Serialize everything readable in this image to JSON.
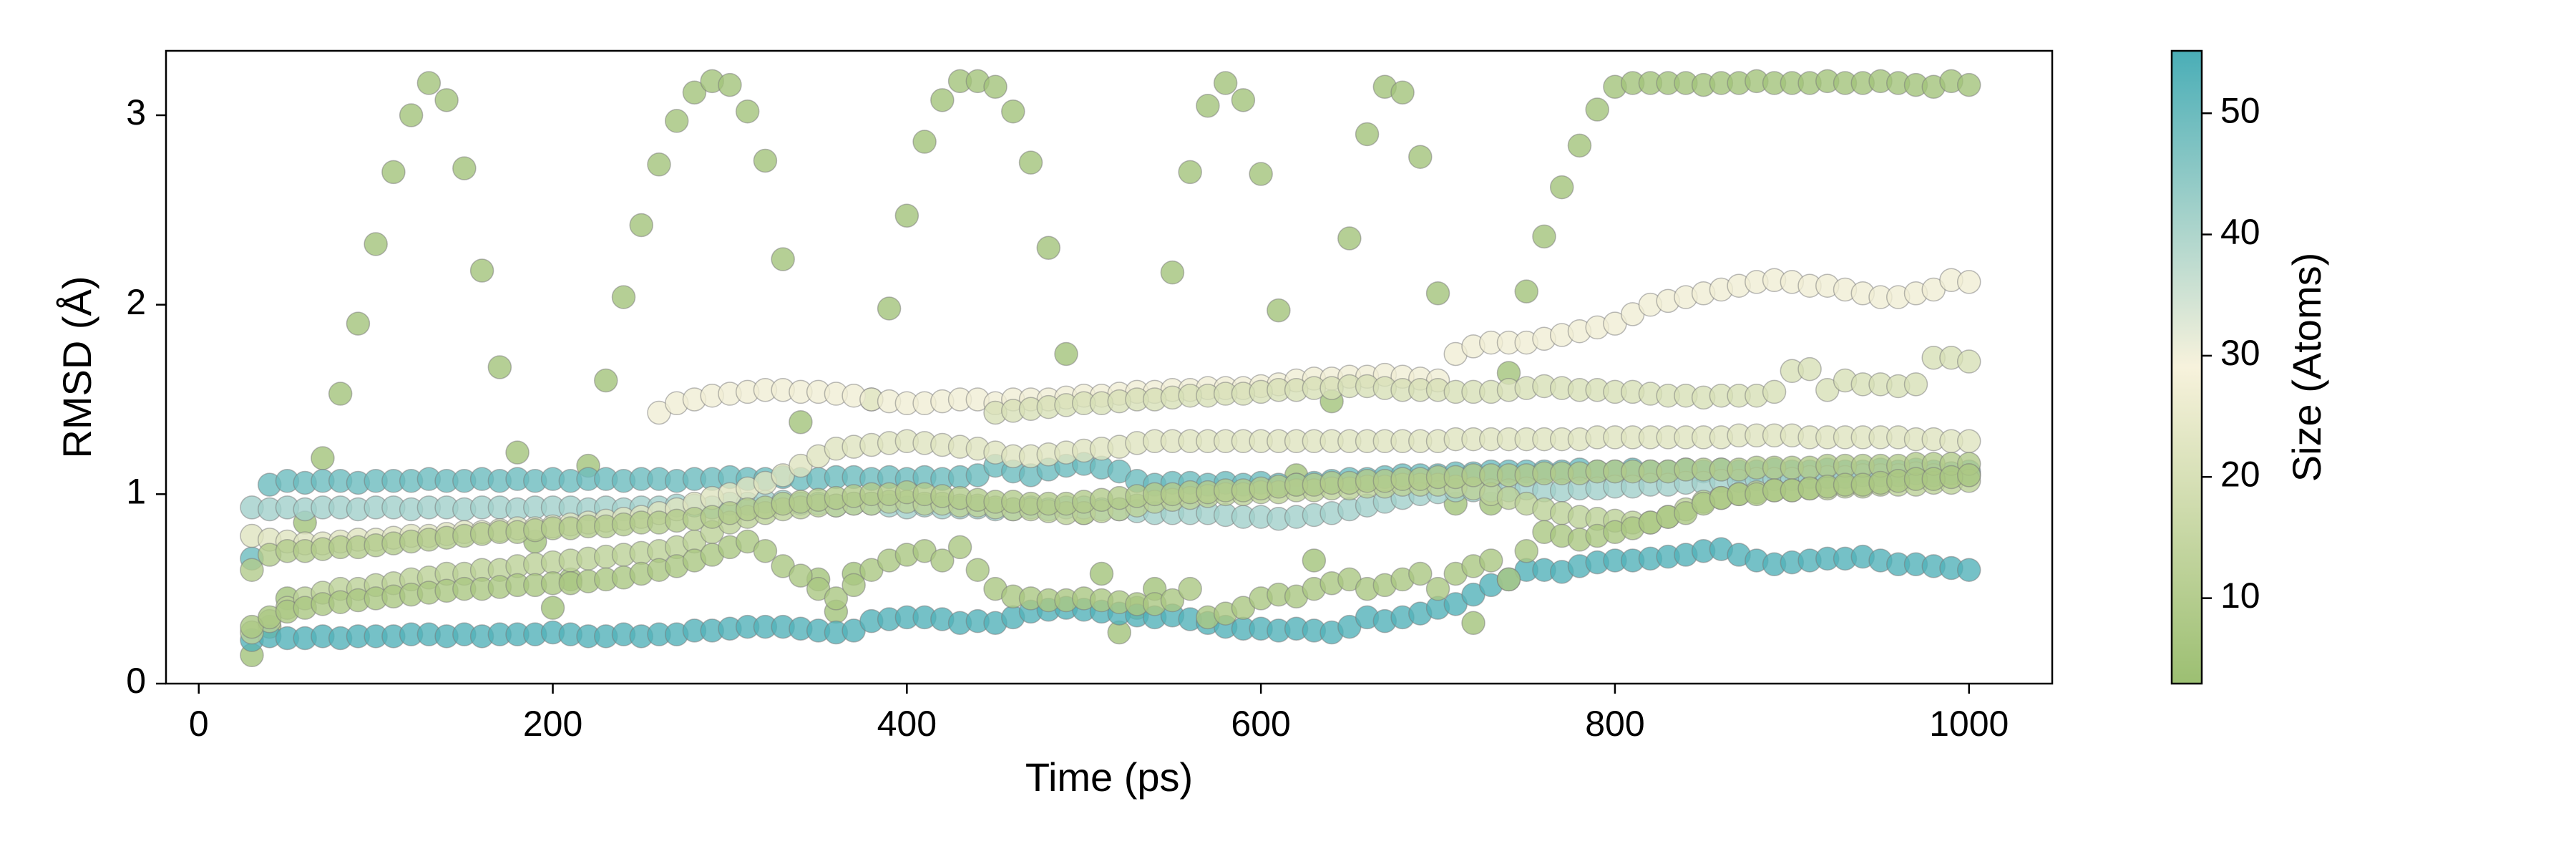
{
  "chart_data": {
    "type": "scatter",
    "xlabel": "Time (ps)",
    "ylabel": "RMSD (Å)",
    "xlim": [
      -18.5,
      1047
    ],
    "ylim": [
      0,
      3.34
    ],
    "xticks": [
      0,
      200,
      400,
      600,
      800,
      1000
    ],
    "yticks": [
      0,
      1,
      2,
      3
    ],
    "colorbar": {
      "label": "Size (Atoms)",
      "clim": [
        2.95,
        55.15
      ],
      "ticks": [
        10,
        20,
        30,
        40,
        50
      ],
      "colormap": [
        "#9cbf72",
        "#f7f2dc",
        "#4aaeb7"
      ]
    },
    "x": [
      30,
      40,
      50,
      60,
      70,
      80,
      90,
      100,
      110,
      120,
      130,
      140,
      150,
      160,
      170,
      180,
      190,
      200,
      210,
      220,
      230,
      240,
      250,
      260,
      270,
      280,
      290,
      300,
      310,
      320,
      330,
      340,
      350,
      360,
      370,
      380,
      390,
      400,
      410,
      420,
      430,
      440,
      450,
      460,
      470,
      480,
      490,
      500,
      510,
      520,
      530,
      540,
      550,
      560,
      570,
      580,
      590,
      600,
      610,
      620,
      630,
      640,
      650,
      660,
      670,
      680,
      690,
      700,
      710,
      720,
      730,
      740,
      750,
      760,
      770,
      780,
      790,
      800,
      810,
      820,
      830,
      840,
      850,
      860,
      870,
      880,
      890,
      900,
      910,
      920,
      930,
      940,
      950,
      960,
      970,
      980,
      990,
      1000
    ],
    "series": [
      {
        "size": 5,
        "values": [
          0.15,
          0.3,
          0.45,
          0.85,
          1.19,
          1.53,
          1.9,
          2.32,
          2.7,
          3.0,
          3.17,
          3.08,
          2.72,
          2.18,
          1.67,
          1.22,
          0.75,
          0.4,
          0.55,
          1.15,
          1.6,
          2.04,
          2.42,
          2.74,
          2.97,
          3.12,
          3.18,
          3.16,
          3.02,
          2.76,
          2.24,
          1.38,
          0.55,
          0.38,
          0.58,
          1.5,
          1.98,
          2.47,
          2.86,
          3.08,
          3.18,
          3.18,
          3.15,
          3.02,
          2.75,
          2.3,
          1.74,
          0.9,
          0.58,
          0.27,
          0.4,
          0.5,
          2.17,
          2.7,
          3.05,
          3.17,
          3.08,
          2.69,
          1.97,
          1.1,
          0.65,
          1.49,
          2.35,
          2.9,
          3.15,
          3.12,
          2.78,
          2.06,
          0.95,
          0.32,
          0.95,
          1.64,
          2.07,
          2.36,
          2.62,
          2.84,
          3.03,
          3.15,
          3.17,
          3.17,
          3.17,
          3.17,
          3.16,
          3.17,
          3.17,
          3.18,
          3.17,
          3.17,
          3.17,
          3.18,
          3.17,
          3.17,
          3.18,
          3.17,
          3.16,
          3.15,
          3.18,
          3.16
        ]
      },
      {
        "size": 54,
        "values": [
          0.23,
          0.25,
          0.24,
          0.24,
          0.25,
          0.24,
          0.25,
          0.25,
          0.25,
          0.26,
          0.26,
          0.25,
          0.26,
          0.25,
          0.26,
          0.26,
          0.26,
          0.27,
          0.26,
          0.25,
          0.25,
          0.26,
          0.25,
          0.26,
          0.26,
          0.28,
          0.28,
          0.29,
          0.3,
          0.3,
          0.3,
          0.29,
          0.28,
          0.27,
          0.28,
          0.33,
          0.34,
          0.35,
          0.35,
          0.34,
          0.32,
          0.33,
          0.32,
          0.35,
          0.38,
          0.39,
          0.4,
          0.39,
          0.38,
          0.37,
          0.36,
          0.35,
          0.36,
          0.34,
          0.32,
          0.3,
          0.29,
          0.29,
          0.28,
          0.29,
          0.28,
          0.27,
          0.3,
          0.35,
          0.33,
          0.35,
          0.37,
          0.4,
          0.42,
          0.47,
          0.52,
          0.55,
          0.6,
          0.6,
          0.59,
          0.62,
          0.64,
          0.65,
          0.65,
          0.66,
          0.67,
          0.68,
          0.7,
          0.71,
          0.68,
          0.65,
          0.63,
          0.64,
          0.65,
          0.66,
          0.66,
          0.67,
          0.65,
          0.63,
          0.63,
          0.62,
          0.61,
          0.6
        ]
      },
      {
        "size": 50,
        "values": [
          0.66,
          1.05,
          1.07,
          1.06,
          1.07,
          1.07,
          1.06,
          1.07,
          1.07,
          1.07,
          1.08,
          1.07,
          1.07,
          1.08,
          1.07,
          1.08,
          1.07,
          1.08,
          1.07,
          1.08,
          1.08,
          1.07,
          1.08,
          1.08,
          1.07,
          1.08,
          1.08,
          1.09,
          1.08,
          1.08,
          1.09,
          1.08,
          1.08,
          1.09,
          1.09,
          1.08,
          1.09,
          1.08,
          1.09,
          1.08,
          1.09,
          1.1,
          1.15,
          1.12,
          1.1,
          1.13,
          1.15,
          1.16,
          1.14,
          1.12,
          1.07,
          1.05,
          1.06,
          1.06,
          1.05,
          1.06,
          1.05,
          1.06,
          1.05,
          1.05,
          1.06,
          1.07,
          1.08,
          1.08,
          1.09,
          1.1,
          1.1,
          1.1,
          1.11,
          1.11,
          1.12,
          1.12,
          1.12,
          1.12,
          1.12,
          1.13,
          1.12,
          1.12,
          1.13,
          1.12,
          1.12,
          1.13,
          1.12,
          1.13,
          1.12,
          1.12,
          1.13,
          1.12,
          1.12,
          1.13,
          1.12,
          1.12,
          1.13,
          1.12,
          1.13,
          1.12,
          1.11,
          1.12
        ]
      },
      {
        "size": 42,
        "values": [
          0.93,
          0.92,
          0.93,
          0.92,
          0.93,
          0.93,
          0.92,
          0.93,
          0.93,
          0.92,
          0.93,
          0.93,
          0.92,
          0.93,
          0.93,
          0.92,
          0.93,
          0.93,
          0.93,
          0.92,
          0.93,
          0.92,
          0.93,
          0.93,
          0.94,
          0.94,
          0.93,
          0.95,
          0.95,
          0.96,
          0.96,
          0.95,
          0.95,
          0.94,
          0.95,
          0.95,
          0.94,
          0.93,
          0.94,
          0.93,
          0.93,
          0.93,
          0.92,
          0.92,
          0.93,
          0.92,
          0.93,
          0.93,
          0.92,
          0.92,
          0.91,
          0.9,
          0.9,
          0.9,
          0.9,
          0.89,
          0.88,
          0.88,
          0.87,
          0.88,
          0.89,
          0.9,
          0.92,
          0.94,
          0.96,
          0.98,
          1.0,
          1.01,
          1.02,
          1.02,
          1.02,
          1.02,
          1.03,
          1.02,
          1.02,
          1.03,
          1.03,
          1.04,
          1.04,
          1.05,
          1.05,
          1.06,
          1.06,
          1.07,
          1.07,
          1.08,
          1.08,
          1.08,
          1.09,
          1.09,
          1.09,
          1.1,
          1.1,
          1.1,
          1.11,
          1.1,
          1.11,
          1.1
        ]
      },
      {
        "size": 27,
        "values": [
          null,
          null,
          null,
          null,
          null,
          null,
          null,
          null,
          null,
          null,
          null,
          null,
          null,
          null,
          null,
          null,
          null,
          null,
          null,
          null,
          null,
          null,
          null,
          1.43,
          1.48,
          1.5,
          1.52,
          1.53,
          1.54,
          1.55,
          1.55,
          1.54,
          1.54,
          1.53,
          1.52,
          1.5,
          1.49,
          1.48,
          1.48,
          1.49,
          1.5,
          1.5,
          1.48,
          1.5,
          1.5,
          1.5,
          1.51,
          1.52,
          1.52,
          1.53,
          1.54,
          1.54,
          1.55,
          1.55,
          1.56,
          1.56,
          1.56,
          1.57,
          1.58,
          1.6,
          1.61,
          1.61,
          1.62,
          1.62,
          1.63,
          1.62,
          1.61,
          1.6,
          1.74,
          1.78,
          1.8,
          1.8,
          1.8,
          1.82,
          1.84,
          1.86,
          1.88,
          1.9,
          1.95,
          2.0,
          2.02,
          2.04,
          2.06,
          2.08,
          2.1,
          2.12,
          2.13,
          2.12,
          2.1,
          2.1,
          2.08,
          2.06,
          2.04,
          2.04,
          2.06,
          2.08,
          2.13,
          2.12
        ]
      },
      {
        "size": 22,
        "values": [
          0.78,
          0.76,
          0.75,
          0.74,
          0.74,
          0.75,
          0.76,
          0.76,
          0.77,
          0.78,
          0.78,
          0.79,
          0.8,
          0.8,
          0.81,
          0.82,
          0.82,
          0.83,
          0.84,
          0.85,
          0.86,
          0.87,
          0.88,
          0.9,
          0.92,
          0.95,
          0.98,
          1.0,
          1.03,
          1.06,
          1.1,
          1.15,
          1.2,
          1.24,
          1.25,
          1.26,
          1.27,
          1.28,
          1.27,
          1.26,
          1.25,
          1.24,
          1.22,
          1.2,
          1.2,
          1.21,
          1.22,
          1.23,
          1.24,
          1.25,
          1.27,
          1.28,
          1.28,
          1.28,
          1.28,
          1.28,
          1.28,
          1.28,
          1.28,
          1.28,
          1.28,
          1.28,
          1.28,
          1.28,
          1.28,
          1.28,
          1.28,
          1.28,
          1.29,
          1.29,
          1.29,
          1.29,
          1.29,
          1.29,
          1.29,
          1.29,
          1.3,
          1.3,
          1.3,
          1.3,
          1.3,
          1.3,
          1.3,
          1.3,
          1.31,
          1.31,
          1.31,
          1.31,
          1.3,
          1.3,
          1.3,
          1.3,
          1.3,
          1.3,
          1.29,
          1.29,
          1.28,
          1.28
        ]
      },
      {
        "size": 20,
        "values": [
          null,
          null,
          null,
          null,
          null,
          null,
          null,
          null,
          null,
          null,
          null,
          null,
          null,
          null,
          null,
          null,
          null,
          null,
          null,
          null,
          null,
          null,
          null,
          null,
          null,
          null,
          null,
          null,
          null,
          null,
          null,
          null,
          null,
          null,
          null,
          null,
          null,
          null,
          null,
          null,
          null,
          null,
          1.43,
          1.44,
          1.45,
          1.46,
          1.47,
          1.48,
          1.48,
          1.49,
          1.5,
          1.5,
          1.51,
          1.52,
          1.52,
          1.53,
          1.53,
          1.54,
          1.55,
          1.55,
          1.56,
          1.56,
          1.57,
          1.57,
          1.56,
          1.55,
          1.55,
          1.55,
          1.54,
          1.54,
          1.54,
          1.55,
          1.56,
          1.57,
          1.56,
          1.55,
          1.55,
          1.54,
          1.54,
          1.53,
          1.52,
          1.52,
          1.51,
          1.52,
          1.52,
          1.52,
          1.54,
          1.65,
          1.66,
          1.55,
          1.6,
          1.58,
          1.58,
          1.57,
          1.58,
          1.72,
          1.72,
          1.7
        ]
      },
      {
        "size": 12,
        "values": [
          0.27,
          0.33,
          0.4,
          0.45,
          0.48,
          0.5,
          0.5,
          0.52,
          0.53,
          0.55,
          0.56,
          0.58,
          0.58,
          0.6,
          0.6,
          0.62,
          0.63,
          0.64,
          0.65,
          0.66,
          0.67,
          0.68,
          0.69,
          0.7,
          0.72,
          0.75,
          0.8,
          0.85,
          0.88,
          0.9,
          0.92,
          0.93,
          0.94,
          0.94,
          0.95,
          0.95,
          0.96,
          0.96,
          0.95,
          0.95,
          0.94,
          0.94,
          0.93,
          0.92,
          0.92,
          0.91,
          0.9,
          0.9,
          0.91,
          0.92,
          0.94,
          0.96,
          0.97,
          0.98,
          0.99,
          1.0,
          1.0,
          1.01,
          1.01,
          1.02,
          1.02,
          1.03,
          1.03,
          1.04,
          1.04,
          1.05,
          1.05,
          1.05,
          1.04,
          1.03,
          1.0,
          0.98,
          0.95,
          0.92,
          0.9,
          0.88,
          0.87,
          0.86,
          0.85,
          0.85,
          0.88,
          0.92,
          0.96,
          0.98,
          1.0,
          1.01,
          1.02,
          1.02,
          1.03,
          1.03,
          1.04,
          1.04,
          1.05,
          1.05,
          1.05,
          1.06,
          1.06,
          1.07
        ]
      },
      {
        "size": 9,
        "values": [
          0.6,
          0.68,
          0.7,
          0.7,
          0.71,
          0.72,
          0.72,
          0.73,
          0.74,
          0.75,
          0.76,
          0.77,
          0.78,
          0.79,
          0.8,
          0.8,
          0.81,
          0.82,
          0.82,
          0.83,
          0.83,
          0.84,
          0.85,
          0.85,
          0.86,
          0.87,
          0.88,
          0.9,
          0.92,
          0.93,
          0.95,
          0.96,
          0.97,
          0.98,
          0.99,
          1.0,
          1.0,
          1.01,
          1.0,
          0.99,
          0.98,
          0.97,
          0.96,
          0.96,
          0.95,
          0.95,
          0.95,
          0.96,
          0.97,
          0.98,
          0.99,
          1.0,
          1.0,
          1.01,
          1.01,
          1.02,
          1.02,
          1.03,
          1.04,
          1.05,
          1.05,
          1.06,
          1.06,
          1.07,
          1.07,
          1.08,
          1.08,
          1.09,
          1.09,
          1.1,
          1.1,
          1.1,
          1.1,
          1.11,
          1.11,
          1.11,
          1.12,
          1.12,
          1.12,
          1.12,
          1.12,
          1.13,
          1.13,
          1.13,
          1.13,
          1.14,
          1.14,
          1.14,
          1.14,
          1.15,
          1.15,
          1.15,
          1.15,
          1.15,
          1.16,
          1.16,
          1.16,
          1.16
        ]
      },
      {
        "size": 7,
        "values": [
          0.3,
          0.35,
          0.38,
          0.4,
          0.42,
          0.43,
          0.44,
          0.45,
          0.46,
          0.47,
          0.48,
          0.49,
          0.5,
          0.5,
          0.51,
          0.52,
          0.52,
          0.53,
          0.53,
          0.54,
          0.55,
          0.56,
          0.58,
          0.6,
          0.62,
          0.65,
          0.68,
          0.72,
          0.75,
          0.7,
          0.62,
          0.57,
          0.5,
          0.45,
          0.52,
          0.6,
          0.65,
          0.68,
          0.7,
          0.65,
          0.72,
          0.6,
          0.5,
          0.46,
          0.45,
          0.44,
          0.44,
          0.45,
          0.44,
          0.43,
          0.42,
          0.42,
          0.44,
          0.5,
          0.35,
          0.37,
          0.4,
          0.45,
          0.47,
          0.46,
          0.5,
          0.53,
          0.55,
          0.5,
          0.52,
          0.55,
          0.58,
          0.5,
          0.58,
          0.62,
          0.65,
          0.55,
          0.7,
          0.8,
          0.78,
          0.76,
          0.78,
          0.8,
          0.82,
          0.85,
          0.88,
          0.9,
          0.95,
          0.98,
          1.0,
          1.0,
          1.02,
          1.02,
          1.03,
          1.04,
          1.05,
          1.05,
          1.06,
          1.07,
          1.08,
          1.08,
          1.09,
          1.1
        ]
      }
    ]
  }
}
